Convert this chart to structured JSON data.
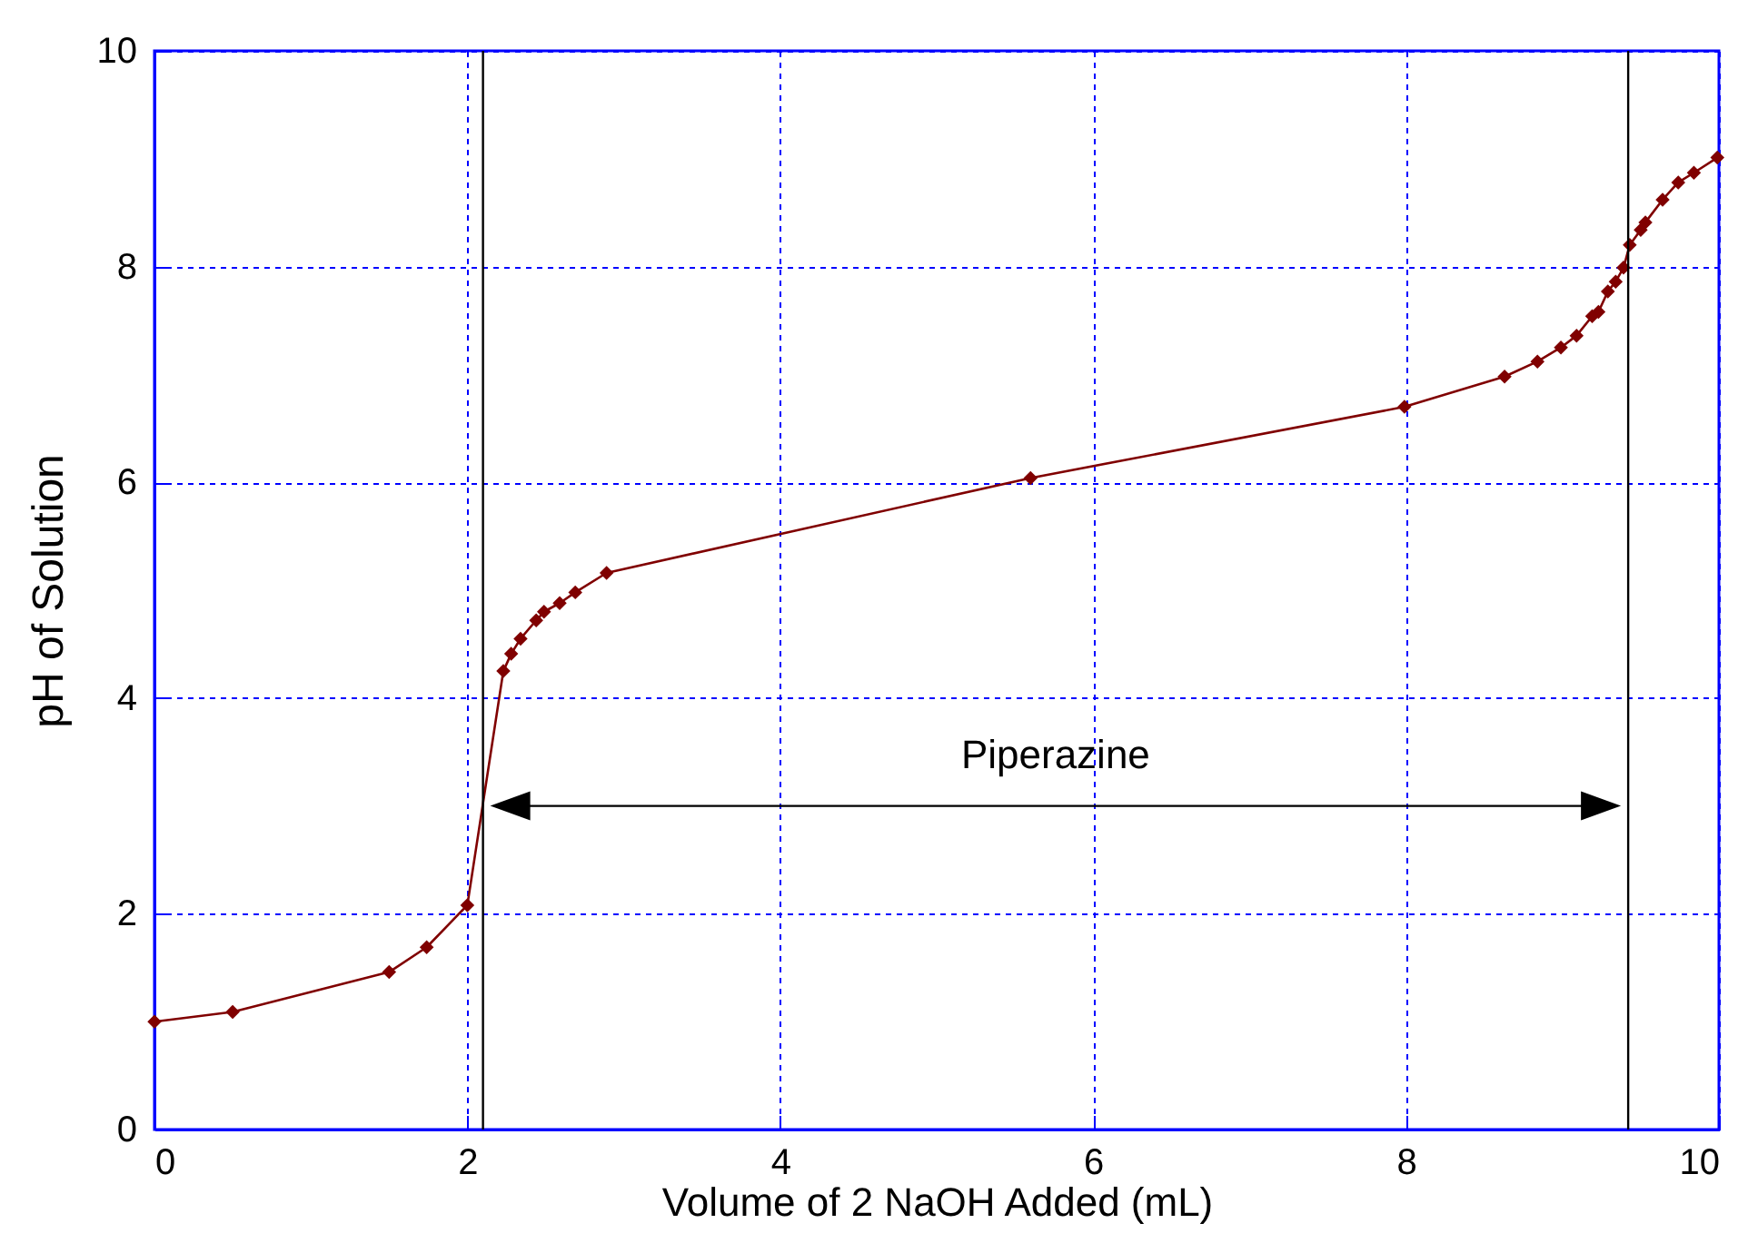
{
  "chart_data": {
    "type": "line",
    "xlabel": "Volume of 2 NaOH Added (mL)",
    "ylabel": "pH of Solution",
    "x": [
      0,
      0.5,
      1.5,
      1.74,
      2.0,
      2.23,
      2.28,
      2.34,
      2.44,
      2.49,
      2.59,
      2.69,
      2.89,
      5.6,
      7.99,
      8.63,
      8.84,
      8.99,
      9.09,
      9.19,
      9.23,
      9.29,
      9.34,
      9.39,
      9.43,
      9.5,
      9.53,
      9.64,
      9.74,
      9.84,
      9.99
    ],
    "series": [
      {
        "color": "#800000",
        "values": [
          1.0,
          1.09,
          1.46,
          1.69,
          2.08,
          4.25,
          4.41,
          4.55,
          4.72,
          4.8,
          4.88,
          4.98,
          5.16,
          6.04,
          6.7,
          6.98,
          7.12,
          7.25,
          7.36,
          7.54,
          7.58,
          7.77,
          7.86,
          7.99,
          8.2,
          8.34,
          8.41,
          8.62,
          8.78,
          8.87,
          9.01
        ]
      }
    ],
    "xlim": [
      0,
      10
    ],
    "xticks": [
      0,
      2,
      4,
      6,
      8,
      10
    ],
    "ylim": [
      0,
      10
    ],
    "yticks": [
      0,
      2,
      4,
      6,
      8,
      10
    ],
    "grid": true,
    "marker": "diamond",
    "line_style": "solid",
    "ref_lines": [
      {
        "axis": "x",
        "value": 2.1,
        "color": "#000000"
      },
      {
        "axis": "x",
        "value": 9.42,
        "color": "#000000"
      }
    ],
    "annotations": [
      "Piperazine"
    ]
  }
}
